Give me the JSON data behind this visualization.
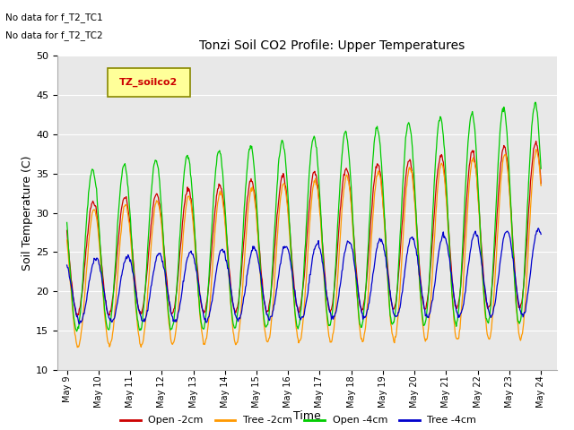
{
  "title": "Tonzi Soil CO2 Profile: Upper Temperatures",
  "xlabel": "Time",
  "ylabel": "Soil Temperature (C)",
  "ylim": [
    10,
    50
  ],
  "annotations": [
    "No data for f_T2_TC1",
    "No data for f_T2_TC2"
  ],
  "legend_label": "TZ_soilco2",
  "series_labels": [
    "Open -2cm",
    "Tree -2cm",
    "Open -4cm",
    "Tree -4cm"
  ],
  "series_colors": [
    "#cc0000",
    "#ff9900",
    "#00cc00",
    "#0000cc"
  ],
  "background_color": "#ffffff",
  "plot_bg_color": "#e8e8e8",
  "grid_color": "#ffffff",
  "tick_labels": [
    "May 9",
    "May 10",
    "May 11",
    "May 12",
    "May 13",
    "May 14",
    "May 15",
    "May 16",
    "May 17",
    "May 18",
    "May 19",
    "May 20",
    "May 21",
    "May 22",
    "May 23",
    "May 24"
  ],
  "tick_positions": [
    0,
    1,
    2,
    3,
    4,
    5,
    6,
    7,
    8,
    9,
    10,
    11,
    12,
    13,
    14,
    15
  ],
  "yticks": [
    10,
    15,
    20,
    25,
    30,
    35,
    40,
    45,
    50
  ]
}
